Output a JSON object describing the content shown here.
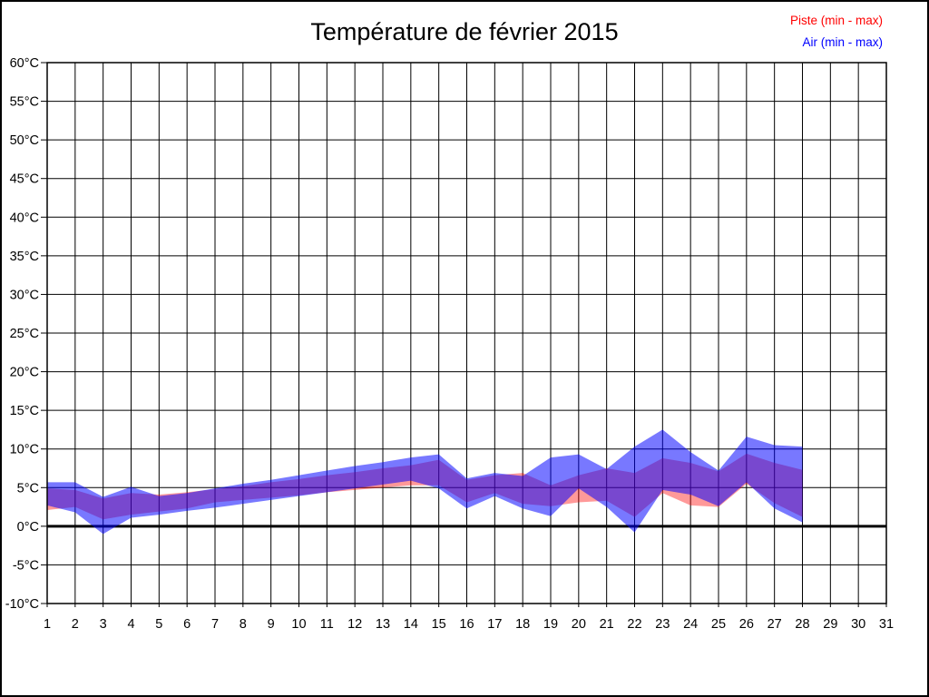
{
  "header": {
    "title": "Température de février 2015"
  },
  "chart_data": {
    "type": "area",
    "title": "Température de février 2015",
    "xlabel": "",
    "ylabel": "",
    "grid": true,
    "legend_position": "top-right",
    "x_axis": {
      "min": 1,
      "max": 31,
      "tick_labels": [
        "1",
        "2",
        "3",
        "4",
        "5",
        "6",
        "7",
        "8",
        "9",
        "10",
        "11",
        "12",
        "13",
        "14",
        "15",
        "16",
        "17",
        "18",
        "19",
        "20",
        "21",
        "22",
        "23",
        "24",
        "25",
        "26",
        "27",
        "28",
        "29",
        "30",
        "31"
      ]
    },
    "y_axis": {
      "min": -10,
      "max": 60,
      "tick_step": 5,
      "ticks": [
        60,
        55,
        50,
        45,
        40,
        35,
        30,
        25,
        20,
        15,
        10,
        5,
        0,
        -5,
        -10
      ],
      "tick_labels": [
        "60°C",
        "55°C",
        "50°C",
        "45°C",
        "40°C",
        "35°C",
        "30°C",
        "25°C",
        "20°C",
        "15°C",
        "10°C",
        "5°C",
        "0°C",
        "-5°C",
        "-10°C"
      ],
      "zero_line_bold": true
    },
    "days": [
      1,
      2,
      3,
      4,
      5,
      6,
      7,
      8,
      9,
      10,
      11,
      12,
      13,
      14,
      15,
      16,
      17,
      18,
      19,
      20,
      21,
      22,
      23,
      24,
      25,
      26,
      27,
      28
    ],
    "series": [
      {
        "name": "Piste (min - max)",
        "color": "#ff0000",
        "fill_opacity": 0.4,
        "min": [
          2.1,
          2.5,
          0.9,
          1.5,
          1.9,
          2.3,
          3.1,
          3.4,
          3.7,
          4.0,
          4.4,
          4.7,
          5.0,
          5.3,
          5.3,
          3.1,
          4.3,
          2.9,
          2.6,
          3.1,
          3.3,
          1.2,
          4.3,
          2.7,
          2.5,
          5.5,
          3.0,
          1.2
        ],
        "max": [
          4.9,
          4.7,
          3.6,
          4.3,
          4.1,
          4.4,
          4.8,
          5.2,
          5.7,
          6.1,
          6.6,
          7.0,
          7.5,
          7.9,
          8.6,
          6.0,
          6.6,
          6.9,
          5.3,
          6.6,
          7.5,
          6.9,
          8.8,
          8.2,
          7.1,
          9.4,
          8.2,
          7.3
        ]
      },
      {
        "name": "Air (min - max)",
        "color": "#0000ff",
        "fill_opacity": 0.53,
        "min": [
          2.7,
          1.8,
          -1.0,
          1.1,
          1.5,
          2.0,
          2.4,
          2.9,
          3.4,
          3.9,
          4.4,
          4.9,
          5.4,
          5.9,
          4.9,
          2.3,
          3.9,
          2.3,
          1.3,
          4.9,
          2.5,
          -0.8,
          4.7,
          4.1,
          2.6,
          5.7,
          2.3,
          0.5
        ],
        "max": [
          5.7,
          5.7,
          3.8,
          5.1,
          3.9,
          4.3,
          4.9,
          5.5,
          6.0,
          6.6,
          7.2,
          7.8,
          8.3,
          8.9,
          9.3,
          6.2,
          6.9,
          6.5,
          8.9,
          9.3,
          7.4,
          10.3,
          12.5,
          9.6,
          7.2,
          11.6,
          10.5,
          10.3
        ]
      }
    ],
    "grid_color": "#000000",
    "background_color": "#ffffff"
  }
}
